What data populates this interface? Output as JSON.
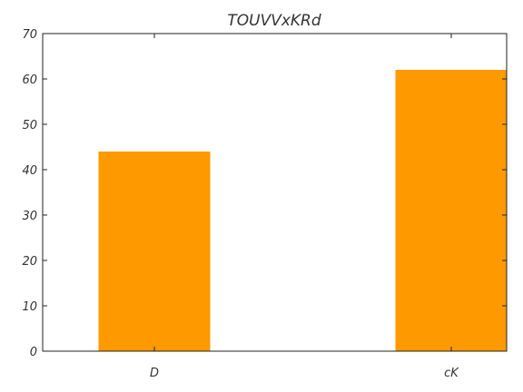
{
  "chart_data": {
    "type": "bar",
    "title": "TOUVVxKRd",
    "xlabel": "",
    "ylabel": "",
    "categories": [
      "D",
      "cK"
    ],
    "values": [
      44,
      62
    ],
    "ylim": [
      0,
      70
    ],
    "yticks": [
      0,
      10,
      20,
      30,
      40,
      50,
      60,
      70
    ],
    "bar_color": "#ff9900",
    "grid": false,
    "legend": "none"
  }
}
